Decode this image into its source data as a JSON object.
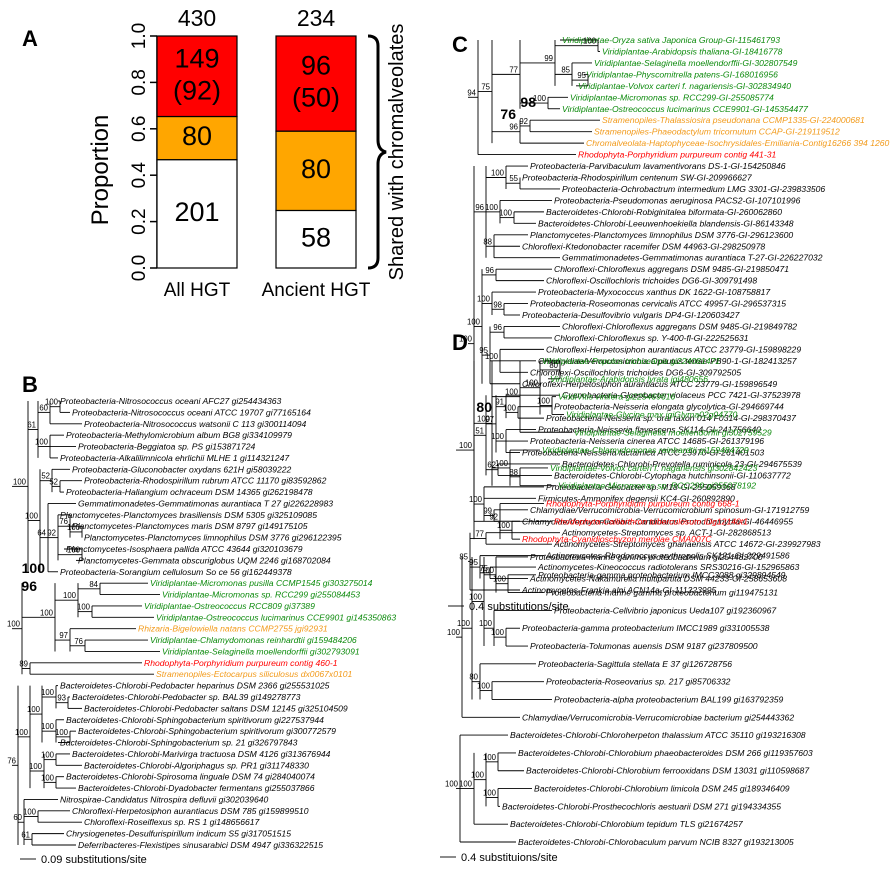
{
  "colors": {
    "red": "#ff0000",
    "orange": "#ffa600",
    "green": "#0c8a0c",
    "gold": "#f29a1a",
    "black": "#000000"
  },
  "chart_data": [
    {
      "type": "bar",
      "panel": "A",
      "ylabel": "Proportion",
      "ylim": [
        0,
        1
      ],
      "yticks": [
        "0.0",
        "0.2",
        "0.4",
        "0.6",
        "0.8",
        "1.0"
      ],
      "categories": [
        "All HGT",
        "Ancient HGT"
      ],
      "totals": [
        "430",
        "234"
      ],
      "series": [
        {
          "name": "not shared",
          "color": "#ffffff",
          "values": [
            0.467,
            0.248
          ],
          "labels": [
            "201",
            "58"
          ]
        },
        {
          "name": "orange",
          "color": "#ffa600",
          "values": [
            0.186,
            0.342
          ],
          "labels": [
            "80",
            "80"
          ]
        },
        {
          "name": "red",
          "color": "#ff0000",
          "values": [
            0.347,
            0.41
          ],
          "labels": [
            "149\n(92)",
            "96\n(50)"
          ]
        }
      ],
      "bracket_label": "Shared with chromalveolates"
    },
    {
      "type": "tree",
      "panel": "B",
      "scale_label": "0.09 substitutions/site",
      "taxa": [
        {
          "name": "Proteobacteria-Nitrosococcus oceani AFC27 gi254434363",
          "c": "k"
        },
        {
          "name": "Proteobacteria-Nitrosococcus oceani ATCC 19707 gi77165164",
          "c": "k"
        },
        {
          "name": "Proteobacteria-Nitrosococcus watsonii C 113 gi300114094",
          "c": "k"
        },
        {
          "name": "Proteobacteria-Methylomicrobium album BG8 gi334109979",
          "c": "k"
        },
        {
          "name": "Proteobacteria-Beggiatoa sp. PS gi153871724",
          "c": "k"
        },
        {
          "name": "Proteobacteria-Alkalilimnicola ehrlichii MLHE 1 gi114321247",
          "c": "k"
        },
        {
          "name": "Proteobacteria-Gluconobacter oxydans 621H gi58039222",
          "c": "k"
        },
        {
          "name": "Proteobacteria-Rhodospirillum rubrum ATCC 11170 gi83592862",
          "c": "k"
        },
        {
          "name": "Proteobacteria-Haliangium ochraceum DSM 14365 gi262198478",
          "c": "k"
        },
        {
          "name": "Gemmatimonadetes-Gemmatimonas aurantiaca T 27 gi226228983",
          "c": "k"
        },
        {
          "name": "Planctomycetes-Planctomyces brasiliensis DSM 5305 gi325109085",
          "c": "k"
        },
        {
          "name": "Planctomycetes-Planctomyces maris DSM 8797 gi149175105",
          "c": "k"
        },
        {
          "name": "Planctomycetes-Planctomyces limnophilus DSM 3776 gi296122395",
          "c": "k"
        },
        {
          "name": "Planctomycetes-Isosphaera pallida ATCC 43644 gi320103679",
          "c": "k"
        },
        {
          "name": "Planctomycetes-Gemmata obscuriglobus UQM 2246 gi168702084",
          "c": "k"
        },
        {
          "name": "Proteobacteria-Sorangium cellulosum So ce 56 gi162449378",
          "c": "k"
        },
        {
          "name": "Viridiplantae-Micromonas pusilla CCMP1545 gi303275014",
          "c": "g"
        },
        {
          "name": "Viridiplantae-Micromonas sp. RCC299 gi255084453",
          "c": "g"
        },
        {
          "name": "Viridiplantae-Ostreococcus RCC809 gi37389",
          "c": "g"
        },
        {
          "name": "Viridiplantae-Ostreococcus lucimarinus CCE9901 gi145350863",
          "c": "g"
        },
        {
          "name": "Rhizaria-Bigelowiella natans CCMP2755 jgi92931",
          "c": "o"
        },
        {
          "name": "Viridiplantae-Chlamydomonas reinhardtii gi159484206",
          "c": "g"
        },
        {
          "name": "Viridiplantae-Selaginella moellendorffii gi302793091",
          "c": "g"
        },
        {
          "name": "Rhodophyta-Porphyridium purpureum contig 460-1",
          "c": "r"
        },
        {
          "name": "Stramenopiles-Ectocarpus siliculosus dx0067x0101",
          "c": "o"
        },
        {
          "name": "Bacteroidetes-Chlorobi-Pedobacter heparinus DSM 2366 gi255531025",
          "c": "k"
        },
        {
          "name": "Bacteroidetes-Chlorobi-Pedobacter sp. BAL39 gi149278773",
          "c": "k"
        },
        {
          "name": "Bacteroidetes-Chlorobi-Pedobacter saltans DSM 12145 gi325104509",
          "c": "k"
        },
        {
          "name": "Bacteroidetes-Chlorobi-Sphingobacterium spiritivorum gi227537944",
          "c": "k"
        },
        {
          "name": "Bacteroidetes-Chlorobi-Sphingobacterium spiritivorum gi300772579",
          "c": "k"
        },
        {
          "name": "Bacteroidetes-Chlorobi-Sphingobacterium sp. 21 gi326797843",
          "c": "k"
        },
        {
          "name": "Bacteroidetes-Chlorobi-Marivirga tractuosa DSM 4126 gi313676944",
          "c": "k"
        },
        {
          "name": "Bacteroidetes-Chlorobi-Algoriphagus sp. PR1 gi311748330",
          "c": "k"
        },
        {
          "name": "Bacteroidetes-Chlorobi-Spirosoma linguale DSM 74 gi284040074",
          "c": "k"
        },
        {
          "name": "Bacteroidetes-Chlorobi-Dyadobacter fermentans gi255037866",
          "c": "k"
        },
        {
          "name": "Nitrospirae-Candidatus Nitrospira defluvii gi302039640",
          "c": "k"
        },
        {
          "name": "Chloroflexi-Herpetosiphon aurantiacus DSM 785 gi159899510",
          "c": "k"
        },
        {
          "name": "Chloroflexi-Roseiflexus sp. RS 1 gi148656617",
          "c": "k"
        },
        {
          "name": "Chrysiogenetes-Desulfurispirillum indicum S5 gi317051515",
          "c": "k"
        },
        {
          "name": "Deferribacteres-Flexistipes sinusarabici DSM 4947 gi336322515",
          "c": "k"
        }
      ],
      "bootstraps": [
        "100",
        "60",
        "61",
        "100",
        "52",
        "100",
        "52",
        "100",
        "76",
        "100",
        "64",
        "92",
        "100",
        "84",
        "100",
        "100",
        "100",
        "100",
        "97",
        "76",
        "89",
        "100",
        "93",
        "100",
        "100",
        "100",
        "100",
        "100",
        "76",
        "100",
        "100"
      ],
      "bold_bootstraps": [
        "100",
        "96"
      ]
    },
    {
      "type": "tree",
      "panel": "C",
      "scale_label": "0.4 substitutions/site",
      "taxa": [
        {
          "name": "Viridiplantae-Oryza sativa Japonica Group-GI-115461793",
          "c": "g"
        },
        {
          "name": "Viridiplantae-Arabidopsis thaliana-GI-18416778",
          "c": "g"
        },
        {
          "name": "Viridiplantae-Selaginella moellendorffii-GI-302807549",
          "c": "g"
        },
        {
          "name": "Viridiplantae-Physcomitrella patens-GI-168016956",
          "c": "g"
        },
        {
          "name": "Viridiplantae-Volvox carteri f. nagariensis-GI-302834940",
          "c": "g"
        },
        {
          "name": "Viridiplantae-Micromonas sp. RCC299-GI-255085774",
          "c": "g"
        },
        {
          "name": "Viridiplantae-Ostreococcus lucimarinus CCE9901-GI-145354477",
          "c": "g"
        },
        {
          "name": "Stramenopiles-Thalassiosira pseudonana CCMP1335-GI-224000681",
          "c": "o"
        },
        {
          "name": "Stramenopiles-Phaeodactylum tricornutum CCAP-GI-219119512",
          "c": "o"
        },
        {
          "name": "Chromalveolata-Haptophyceae-Isochrysidales-Emiliania-Contig16266 394 1260 R",
          "c": "o"
        },
        {
          "name": "Rhodophyta-Porphyridium purpureum contig 441-31",
          "c": "r"
        },
        {
          "name": "Proteobacteria-Parvibaculum lavamentivorans DS-1-GI-154250846",
          "c": "k"
        },
        {
          "name": "Proteobacteria-Rhodospirillum centenum SW-GI-209966627",
          "c": "k"
        },
        {
          "name": "Proteobacteria-Ochrobactrum intermedium LMG 3301-GI-239833506",
          "c": "k"
        },
        {
          "name": "Proteobacteria-Pseudomonas aeruginosa PACS2-GI-107101996",
          "c": "k"
        },
        {
          "name": "Bacteroidetes-Chlorobi-Robiginitalea biformata-GI-260062860",
          "c": "k"
        },
        {
          "name": "Bacteroidetes-Chlorobi-Leeuwenhoekiella blandensis-GI-86143348",
          "c": "k"
        },
        {
          "name": "Planctomycetes-Planctomyces limnophilus DSM 3776-GI-296123600",
          "c": "k"
        },
        {
          "name": "Chloroflexi-Ktedonobacter racemifer DSM 44963-GI-298250978",
          "c": "k"
        },
        {
          "name": "Gemmatimonadetes-Gemmatimonas aurantiaca T-27-GI-226227032",
          "c": "k"
        },
        {
          "name": "Chloroflexi-Chloroflexus aggregans DSM 9485-GI-219850471",
          "c": "k"
        },
        {
          "name": "Chloroflexi-Oscillochloris trichoides DG6-GI-309791498",
          "c": "k"
        },
        {
          "name": "Proteobacteria-Myxococcus xanthus DK 1622-GI-108758817",
          "c": "k"
        },
        {
          "name": "Proteobacteria-Roseomonas cervicalis ATCC 49957-GI-296537315",
          "c": "k"
        },
        {
          "name": "Proteobacteria-Desulfovibrio vulgaris DP4-GI-120603427",
          "c": "k"
        },
        {
          "name": "Chloroflexi-Chloroflexus aggregans DSM 9485-GI-219849782",
          "c": "k"
        },
        {
          "name": "Chloroflexi-Chloroflexus sp. Y-400-fl-GI-222525631",
          "c": "k"
        },
        {
          "name": "Chloroflexi-Herpetosiphon aurantiacus ATCC 23779-GI-159898229",
          "c": "k"
        },
        {
          "name": "Chlamydiae/Verrucomicrobia-Opitutus terrae PB90-1-GI-182413257",
          "c": "k"
        },
        {
          "name": "Chloroflexi-Oscillochloris trichoides DG6-GI-309792505",
          "c": "k"
        },
        {
          "name": "Chloroflexi-Herpetosiphon aurantiacus ATCC 23779-GI-159896549",
          "c": "k"
        },
        {
          "name": "Cyanobacteria-Gloeobacter violaceus PCC 7421-GI-37523978",
          "c": "k"
        },
        {
          "name": "Proteobacteria-Neisseria elongata glycolytica-GI-294669744",
          "c": "k"
        },
        {
          "name": "Proteobacteria-Neisseria sp. oral taxon 014 F0314-GI-298370437",
          "c": "k"
        },
        {
          "name": "Proteobacteria-Neisseria flavescens SK114-GI-241756640",
          "c": "k"
        },
        {
          "name": "Proteobacteria-Neisseria cinerea ATCC 14685-GI-261379196",
          "c": "k"
        },
        {
          "name": "Proteobacteria-Neisseria lactamica ATCC 23970-GI-261401503",
          "c": "k"
        },
        {
          "name": "Bacteroidetes-Chlorobi-Prevotella ruminicola 23-GI-294675539",
          "c": "k"
        },
        {
          "name": "Bacteroidetes-Chlorobi-Cytophaga hutchinsonii-GI-110637772",
          "c": "k"
        },
        {
          "name": "Proteobacteria-Geobacter sp. M18-GI-255059368",
          "c": "k"
        },
        {
          "name": "Firmicutes-Ammonifex degensii KC4-GI-260892890",
          "c": "k"
        },
        {
          "name": "Chlamydiae/Verrucomicrobia-Verrucomicrobium spinosum-GI-171912759",
          "c": "k"
        },
        {
          "name": "Chlamydiae/Verrucomicrobia-Candidatus Protochlamydia-GI-46446955",
          "c": "k"
        },
        {
          "name": "Actinomycetes-Streptomyces sp. ACT-1-GI-282868513",
          "c": "k"
        },
        {
          "name": "Actinomycetes-Streptomyces ghanaensis ATCC 14672-GI-239927983",
          "c": "k"
        },
        {
          "name": "Actinomycetes-Rhodococcus erythropolis SK121-GI-229491586",
          "c": "k"
        },
        {
          "name": "Actinomycetes-Kineococcus radiotolerans SRS30216-GI-152965863",
          "c": "k"
        },
        {
          "name": "Actinomycetes-Nakamurella multipartita DSM 44233-GI-258653608",
          "c": "k"
        },
        {
          "name": "Actinomycetes-Frankia alni ACN14a-GI-111223995",
          "c": "k"
        }
      ],
      "bootstraps": [
        "100",
        "99",
        "77",
        "85",
        "95",
        "75",
        "94",
        "100",
        "92",
        "96",
        "100",
        "55",
        "100",
        "96",
        "100",
        "88",
        "96",
        "100",
        "98",
        "100",
        "96",
        "100",
        "95",
        "100",
        "91",
        "100",
        "97",
        "51",
        "100",
        "62"
      ],
      "bold_bootstraps": [
        "98",
        "76"
      ]
    },
    {
      "type": "tree",
      "panel": "D",
      "scale_label": "0.4 substituions/site",
      "taxa": [
        {
          "name": "Viridiplantae-Populus trichocarpa gi224081471",
          "c": "g"
        },
        {
          "name": "Viridiplantae-Arabidopsis lyrata jgi480656",
          "c": "g"
        },
        {
          "name": "ViridiVitis vinifera gi225469616",
          "c": "g"
        },
        {
          "name": "Viridiplantae-Glycine max jgiGlyma02g04770",
          "c": "g"
        },
        {
          "name": "Viridiplantae-Selaginella moellendorffii gi302759529",
          "c": "g"
        },
        {
          "name": "Viridiplantae-Chlamydomonas reinhardtii gi159484729",
          "c": "g"
        },
        {
          "name": "Viridiplantae-Volvox carteri f. nagariensis gi302842423",
          "c": "g"
        },
        {
          "name": "Viridiplantae-Micromonas sp. RCC299 gi255078192",
          "c": "g"
        },
        {
          "name": "Rhodophyta-Porphyridium purpureum contig 668-1",
          "c": "r"
        },
        {
          "name": "Rhodophyta-Calliarthron tuberculosum IDg12140t1",
          "c": "r"
        },
        {
          "name": "Rhodophyta-Cyanidioschyzon merolae CMA007C",
          "c": "r"
        },
        {
          "name": "Proteobacteria-marine gamma proteobacterium gi254482700",
          "c": "k"
        },
        {
          "name": "Proteobacteria-gamma proteobacterium IMCC3088 gi329894549",
          "c": "k"
        },
        {
          "name": "Proteobacteria-marine gamma proteobacterium gi119475131",
          "c": "k"
        },
        {
          "name": "Proteobacteria-Cellvibrio japonicus Ueda107 gi192360967",
          "c": "k"
        },
        {
          "name": "Proteobacteria-gamma proteobacterium IMCC1989 gi331005538",
          "c": "k"
        },
        {
          "name": "Proteobacteria-Tolumonas auensis DSM 9187 gi237809500",
          "c": "k"
        },
        {
          "name": "Proteobacteria-Sagittula stellata E 37 gi126728756",
          "c": "k"
        },
        {
          "name": "Proteobacteria-Roseovarius sp. 217 gi85706332",
          "c": "k"
        },
        {
          "name": "Proteobacteria-alpha proteobacterium BAL199 gi163792359",
          "c": "k"
        },
        {
          "name": "Chlamydiae/Verrucomicrobia-Verrucomicrobiae bacterium gi254443362",
          "c": "k"
        },
        {
          "name": "Bacteroidetes-Chlorobi-Chloroherpeton thalassium ATCC 35110 gi193216308",
          "c": "k"
        },
        {
          "name": "Bacteroidetes-Chlorobi-Chlorobium phaeobacteroides DSM 266 gi119357603",
          "c": "k"
        },
        {
          "name": "Bacteroidetes-Chlorobi-Chlorobium ferrooxidans DSM 13031 gi110598687",
          "c": "k"
        },
        {
          "name": "Bacteroidetes-Chlorobi-Chlorobium limicola DSM 245 gi189346409",
          "c": "k"
        },
        {
          "name": "Bacteroidetes-Chlorobi-Prosthecochloris aestuarii DSM 271 gi194334355",
          "c": "k"
        },
        {
          "name": "Bacteroidetes-Chlorobi-Chlorobium tepidum TLS gi21674257",
          "c": "k"
        },
        {
          "name": "Bacteroidetes-Chlorobi-Chlorobaculum parvum NCIB 8327 gi193213005",
          "c": "k"
        }
      ],
      "bootstraps": [
        "80",
        "100",
        "100",
        "100",
        "100",
        "100",
        "100",
        "88",
        "92",
        "100",
        "100",
        "100",
        "100",
        "100",
        "100",
        "100",
        "100"
      ],
      "bold_bootstraps": [
        "80"
      ]
    }
  ],
  "panel_labels": [
    "A",
    "B",
    "C",
    "D"
  ]
}
